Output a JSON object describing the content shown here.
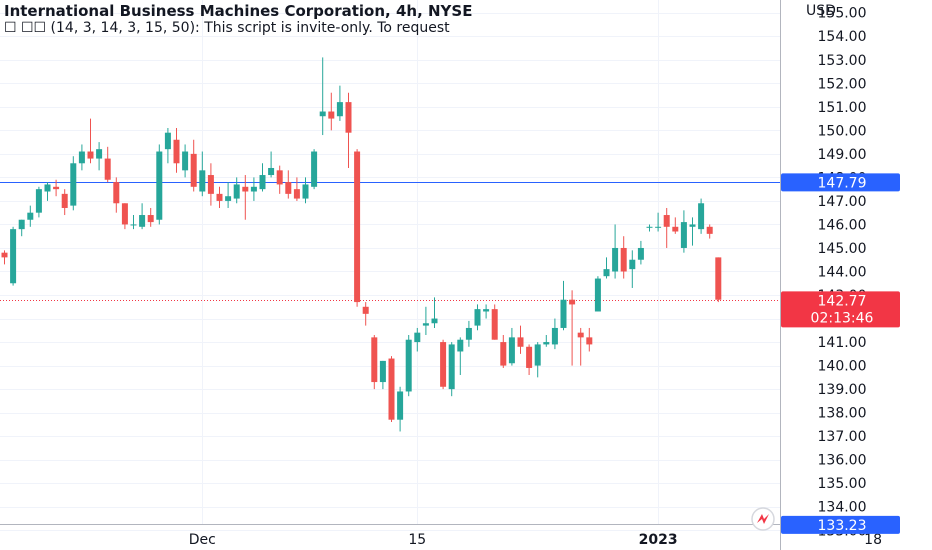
{
  "header": {
    "title": "International Business Machines Corporation, 4h, NYSE",
    "indicator": "☐ ☐☐ (14, 3, 14, 3, 15, 50): This script is invite-only. To request"
  },
  "axis": {
    "currency": "USD",
    "y_ticks": [
      "133.00",
      "134.00",
      "135.00",
      "136.00",
      "137.00",
      "138.00",
      "139.00",
      "140.00",
      "141.00",
      "142.00",
      "143.00",
      "144.00",
      "145.00",
      "146.00",
      "147.00",
      "148.00",
      "149.00",
      "150.00",
      "151.00",
      "152.00",
      "153.00",
      "154.00",
      "155.00"
    ],
    "x_ticks": [
      {
        "label": "Dec",
        "bar": 23,
        "bold": false
      },
      {
        "label": "15",
        "bar": 48,
        "bold": false
      },
      {
        "label": "2023",
        "bar": 76,
        "bold": true
      },
      {
        "label": "18",
        "bar": 101,
        "bold": false
      }
    ]
  },
  "markers": {
    "horizontal_line": {
      "price": 147.79,
      "label": "147.79",
      "color": "#2962ff"
    },
    "last_price": {
      "price": 142.77,
      "label": "142.77",
      "countdown": "02:13:46",
      "color": "#f23645"
    },
    "low_marker": {
      "price": 133.23,
      "label": "133.23",
      "color": "#2962ff"
    }
  },
  "colors": {
    "up": "#26a69a",
    "down": "#ef5350",
    "grid": "#f0f3fa",
    "text": "#131722"
  },
  "icons": {
    "logo": "tradingview-logo-icon"
  },
  "chart_data": {
    "type": "candlestick",
    "symbol": "IBM",
    "interval": "4h",
    "ylim": [
      132.0,
      155.6
    ],
    "candles": [
      {
        "o": 144.8,
        "h": 144.9,
        "l": 144.3,
        "c": 144.6
      },
      {
        "o": 143.5,
        "h": 145.9,
        "l": 143.4,
        "c": 145.8
      },
      {
        "o": 145.8,
        "h": 146.2,
        "l": 145.5,
        "c": 146.2
      },
      {
        "o": 146.2,
        "h": 146.8,
        "l": 145.9,
        "c": 146.5
      },
      {
        "o": 146.5,
        "h": 147.6,
        "l": 146.3,
        "c": 147.5
      },
      {
        "o": 147.4,
        "h": 147.8,
        "l": 147.0,
        "c": 147.7
      },
      {
        "o": 147.6,
        "h": 147.9,
        "l": 147.2,
        "c": 147.5
      },
      {
        "o": 147.3,
        "h": 147.5,
        "l": 146.4,
        "c": 146.7
      },
      {
        "o": 146.8,
        "h": 148.9,
        "l": 146.6,
        "c": 148.6
      },
      {
        "o": 148.6,
        "h": 149.4,
        "l": 148.3,
        "c": 149.1
      },
      {
        "o": 149.1,
        "h": 150.5,
        "l": 148.6,
        "c": 148.8
      },
      {
        "o": 148.8,
        "h": 149.5,
        "l": 148.3,
        "c": 149.2
      },
      {
        "o": 148.8,
        "h": 149.3,
        "l": 147.8,
        "c": 147.9
      },
      {
        "o": 147.8,
        "h": 148.0,
        "l": 146.5,
        "c": 146.9
      },
      {
        "o": 146.9,
        "h": 146.9,
        "l": 145.8,
        "c": 146.0
      },
      {
        "o": 146.0,
        "h": 146.4,
        "l": 145.8,
        "c": 146.0
      },
      {
        "o": 145.9,
        "h": 146.9,
        "l": 145.8,
        "c": 146.4
      },
      {
        "o": 146.4,
        "h": 146.7,
        "l": 145.9,
        "c": 146.1
      },
      {
        "o": 146.2,
        "h": 149.4,
        "l": 146.0,
        "c": 149.1
      },
      {
        "o": 149.2,
        "h": 150.1,
        "l": 148.6,
        "c": 149.9
      },
      {
        "o": 149.6,
        "h": 150.1,
        "l": 148.2,
        "c": 148.6
      },
      {
        "o": 148.3,
        "h": 149.4,
        "l": 148.0,
        "c": 149.1
      },
      {
        "o": 149.0,
        "h": 149.6,
        "l": 147.4,
        "c": 147.6
      },
      {
        "o": 147.4,
        "h": 149.1,
        "l": 147.2,
        "c": 148.3
      },
      {
        "o": 148.1,
        "h": 148.6,
        "l": 146.8,
        "c": 147.3
      },
      {
        "o": 147.3,
        "h": 147.6,
        "l": 146.7,
        "c": 147.0
      },
      {
        "o": 147.0,
        "h": 147.8,
        "l": 146.7,
        "c": 147.2
      },
      {
        "o": 147.1,
        "h": 148.0,
        "l": 146.9,
        "c": 147.7
      },
      {
        "o": 147.6,
        "h": 148.1,
        "l": 146.2,
        "c": 147.4
      },
      {
        "o": 147.4,
        "h": 148.0,
        "l": 147.0,
        "c": 147.6
      },
      {
        "o": 147.5,
        "h": 148.6,
        "l": 147.4,
        "c": 148.1
      },
      {
        "o": 148.1,
        "h": 149.1,
        "l": 148.0,
        "c": 148.4
      },
      {
        "o": 148.3,
        "h": 148.5,
        "l": 147.3,
        "c": 147.7
      },
      {
        "o": 147.8,
        "h": 148.3,
        "l": 147.1,
        "c": 147.3
      },
      {
        "o": 147.5,
        "h": 148.0,
        "l": 147.0,
        "c": 147.1
      },
      {
        "o": 147.1,
        "h": 148.0,
        "l": 146.9,
        "c": 147.7
      },
      {
        "o": 147.6,
        "h": 149.2,
        "l": 147.5,
        "c": 149.1
      },
      {
        "o": 150.6,
        "h": 153.1,
        "l": 149.8,
        "c": 150.8
      },
      {
        "o": 150.8,
        "h": 151.6,
        "l": 150.0,
        "c": 150.5
      },
      {
        "o": 150.6,
        "h": 151.9,
        "l": 150.4,
        "c": 151.2
      },
      {
        "o": 151.2,
        "h": 151.6,
        "l": 148.4,
        "c": 149.9
      },
      {
        "o": 149.1,
        "h": 149.2,
        "l": 142.5,
        "c": 142.7
      },
      {
        "o": 142.5,
        "h": 142.7,
        "l": 141.7,
        "c": 142.2
      },
      {
        "o": 141.2,
        "h": 141.3,
        "l": 139.0,
        "c": 139.3
      },
      {
        "o": 139.3,
        "h": 140.2,
        "l": 139.0,
        "c": 140.2
      },
      {
        "o": 140.3,
        "h": 140.4,
        "l": 137.6,
        "c": 137.7
      },
      {
        "o": 137.7,
        "h": 139.1,
        "l": 137.2,
        "c": 138.9
      },
      {
        "o": 138.9,
        "h": 141.3,
        "l": 138.7,
        "c": 141.1
      },
      {
        "o": 141.0,
        "h": 141.6,
        "l": 140.6,
        "c": 141.4
      },
      {
        "o": 141.7,
        "h": 142.5,
        "l": 141.3,
        "c": 141.8
      },
      {
        "o": 141.8,
        "h": 142.9,
        "l": 141.6,
        "c": 142.0
      },
      {
        "o": 141.0,
        "h": 141.1,
        "l": 139.0,
        "c": 139.1
      },
      {
        "o": 139.0,
        "h": 141.0,
        "l": 138.7,
        "c": 140.9
      },
      {
        "o": 140.6,
        "h": 141.2,
        "l": 139.6,
        "c": 141.1
      },
      {
        "o": 141.1,
        "h": 141.9,
        "l": 140.8,
        "c": 141.6
      },
      {
        "o": 141.7,
        "h": 142.6,
        "l": 141.5,
        "c": 142.4
      },
      {
        "o": 142.3,
        "h": 142.6,
        "l": 142.0,
        "c": 142.4
      },
      {
        "o": 142.4,
        "h": 142.6,
        "l": 141.1,
        "c": 141.1
      },
      {
        "o": 141.0,
        "h": 141.3,
        "l": 139.9,
        "c": 140.0
      },
      {
        "o": 140.1,
        "h": 141.6,
        "l": 140.0,
        "c": 141.2
      },
      {
        "o": 141.2,
        "h": 141.7,
        "l": 140.5,
        "c": 140.8
      },
      {
        "o": 140.8,
        "h": 140.9,
        "l": 139.6,
        "c": 139.9
      },
      {
        "o": 140.0,
        "h": 141.0,
        "l": 139.5,
        "c": 140.9
      },
      {
        "o": 140.9,
        "h": 141.3,
        "l": 140.8,
        "c": 141.0
      },
      {
        "o": 140.9,
        "h": 142.0,
        "l": 140.7,
        "c": 141.6
      },
      {
        "o": 141.6,
        "h": 143.6,
        "l": 141.5,
        "c": 142.8
      },
      {
        "o": 142.8,
        "h": 143.2,
        "l": 140.0,
        "c": 142.6
      },
      {
        "o": 141.4,
        "h": 141.6,
        "l": 140.0,
        "c": 141.2
      },
      {
        "o": 141.2,
        "h": 141.6,
        "l": 140.6,
        "c": 140.9
      },
      {
        "o": 142.3,
        "h": 143.8,
        "l": 142.3,
        "c": 143.7
      },
      {
        "o": 143.8,
        "h": 144.6,
        "l": 143.7,
        "c": 144.1
      },
      {
        "o": 144.0,
        "h": 146.0,
        "l": 143.7,
        "c": 145.0
      },
      {
        "o": 145.0,
        "h": 145.5,
        "l": 143.7,
        "c": 144.0
      },
      {
        "o": 144.1,
        "h": 144.9,
        "l": 143.3,
        "c": 144.5
      },
      {
        "o": 144.5,
        "h": 145.3,
        "l": 144.3,
        "c": 145.0
      },
      {
        "o": 145.9,
        "h": 146.0,
        "l": 145.7,
        "c": 145.9
      },
      {
        "o": 145.9,
        "h": 146.5,
        "l": 145.7,
        "c": 145.9
      },
      {
        "o": 146.4,
        "h": 146.7,
        "l": 145.0,
        "c": 145.9
      },
      {
        "o": 145.9,
        "h": 146.3,
        "l": 145.6,
        "c": 145.7
      },
      {
        "o": 145.0,
        "h": 146.6,
        "l": 144.8,
        "c": 146.1
      },
      {
        "o": 145.9,
        "h": 146.3,
        "l": 145.1,
        "c": 146.0
      },
      {
        "o": 145.8,
        "h": 147.1,
        "l": 145.6,
        "c": 146.9
      },
      {
        "o": 145.9,
        "h": 146.0,
        "l": 145.4,
        "c": 145.6
      },
      {
        "o": 144.6,
        "h": 144.6,
        "l": 142.7,
        "c": 142.8
      }
    ]
  }
}
